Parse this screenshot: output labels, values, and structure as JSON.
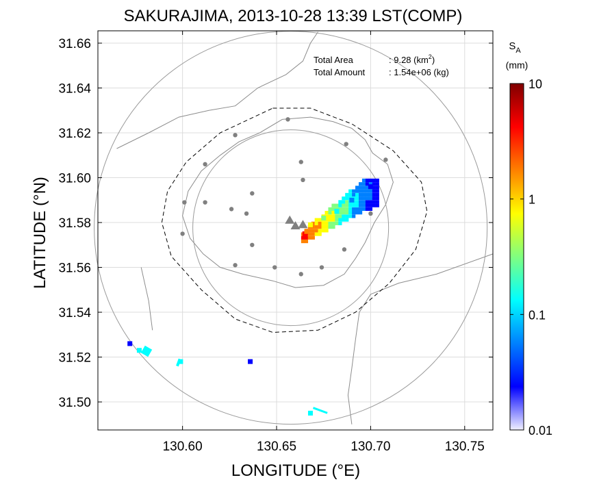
{
  "title": "SAKURAJIMA, 2013-10-28 13:39 LST(COMP)",
  "annotations": {
    "area_label": "Total Area",
    "area_value": ": 9.28 (km",
    "area_exp": "2",
    "area_close": ")",
    "amount_label": "Total Amount",
    "amount_value": ": 1.54e+06 (kg)"
  },
  "axes": {
    "xlabel": "LONGITUDE (°E)",
    "ylabel": "LATITUDE (°N)",
    "xlim": [
      130.555,
      130.765
    ],
    "ylim": [
      31.4875,
      31.6655
    ],
    "xticks": [
      "130.60",
      "130.65",
      "130.70",
      "130.75"
    ],
    "xtick_values": [
      130.6,
      130.65,
      130.7,
      130.75
    ],
    "yticks": [
      "31.66",
      "31.64",
      "31.62",
      "31.60",
      "31.58",
      "31.56",
      "31.54",
      "31.52",
      "31.50"
    ],
    "ytick_values": [
      31.66,
      31.64,
      31.62,
      31.6,
      31.58,
      31.56,
      31.54,
      31.52,
      31.5
    ],
    "grid": true
  },
  "colorbar": {
    "label_main": "S",
    "label_sub": "A",
    "unit": "(mm)",
    "scale": "log",
    "ticks": [
      "10",
      "1",
      "0.1",
      "0.01"
    ],
    "tick_values": [
      10,
      1,
      0.1,
      0.01
    ],
    "colors": [
      "#f0f0ff",
      "#0000ff",
      "#0080ff",
      "#00ffff",
      "#80ff80",
      "#ffff00",
      "#ff8000",
      "#ff0000",
      "#800000"
    ]
  },
  "chart_data": {
    "type": "heatmap",
    "title": "SAKURAJIMA, 2013-10-28 13:39 LST(COMP)",
    "xlabel": "LONGITUDE (°E)",
    "ylabel": "LATITUDE (°N)",
    "total_area_km2": 9.28,
    "total_amount_kg": 1540000,
    "vents": [
      [
        130.657,
        31.581
      ],
      [
        130.66,
        31.5785
      ],
      [
        130.664,
        31.579
      ]
    ],
    "stations": [
      [
        130.656,
        31.626
      ],
      [
        130.628,
        31.619
      ],
      [
        130.687,
        31.615
      ],
      [
        130.612,
        31.606
      ],
      [
        130.663,
        31.607
      ],
      [
        130.708,
        31.608
      ],
      [
        130.664,
        31.599
      ],
      [
        130.601,
        31.589
      ],
      [
        130.612,
        31.589
      ],
      [
        130.626,
        31.586
      ],
      [
        130.634,
        31.584
      ],
      [
        130.637,
        31.593
      ],
      [
        130.7,
        31.584
      ],
      [
        130.6,
        31.575
      ],
      [
        130.637,
        31.57
      ],
      [
        130.628,
        31.561
      ],
      [
        130.649,
        31.56
      ],
      [
        130.663,
        31.557
      ],
      [
        130.674,
        31.56
      ],
      [
        130.686,
        31.568
      ]
    ],
    "ash_cells_sample": [
      [
        130.7,
        31.596,
        0.03
      ],
      [
        130.69,
        31.59,
        0.05
      ],
      [
        130.682,
        31.585,
        0.12
      ],
      [
        130.675,
        31.582,
        0.3
      ],
      [
        130.668,
        31.579,
        0.8
      ],
      [
        130.665,
        31.575,
        3.0
      ],
      [
        130.666,
        31.576,
        2.0
      ],
      [
        130.572,
        31.526,
        0.02
      ],
      [
        130.577,
        31.523,
        0.2
      ],
      [
        130.599,
        31.518,
        0.12
      ],
      [
        130.636,
        31.518,
        0.03
      ],
      [
        130.668,
        31.495,
        0.15
      ]
    ],
    "range_circles_km": [
      5,
      10
    ]
  }
}
